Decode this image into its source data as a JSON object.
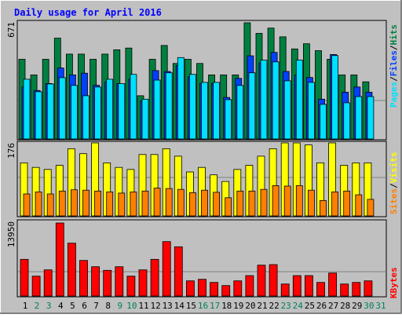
{
  "title": "Daily usage for April 2016",
  "colors": {
    "background": "#C0C0C0",
    "title": "#0000FF",
    "hits": "#008040",
    "files": "#0040FF",
    "pages": "#00E0FF",
    "visits": "#FFFF00",
    "sites": "#FF8000",
    "kbytes": "#FF0000",
    "weekend_day_label": "#00805C",
    "grid": "#808080"
  },
  "chart_data": [
    {
      "type": "bar",
      "panel": "hits-files-pages",
      "y_max_label": "671",
      "ylim": [
        0,
        671
      ],
      "legend": [
        "Pages",
        "Files",
        "Hits"
      ],
      "categories": [
        "1",
        "2",
        "3",
        "4",
        "5",
        "6",
        "7",
        "8",
        "9",
        "10",
        "11",
        "12",
        "13",
        "14",
        "15",
        "16",
        "17",
        "18",
        "19",
        "20",
        "21",
        "22",
        "23",
        "24",
        "25",
        "26",
        "27",
        "28",
        "29",
        "30",
        "31"
      ],
      "series": [
        {
          "name": "Hits",
          "values": [
            460,
            370,
            460,
            582,
            490,
            490,
            460,
            490,
            515,
            525,
            250,
            460,
            540,
            436,
            460,
            436,
            370,
            370,
            370,
            671,
            610,
            640,
            590,
            520,
            550,
            510,
            460,
            370,
            370,
            330,
            0
          ]
        },
        {
          "name": "Files",
          "values": [
            300,
            280,
            320,
            410,
            370,
            380,
            310,
            330,
            320,
            345,
            220,
            395,
            390,
            425,
            360,
            320,
            320,
            240,
            350,
            480,
            440,
            500,
            390,
            370,
            355,
            230,
            488,
            270,
            300,
            270,
            0
          ]
        },
        {
          "name": "Pages",
          "values": [
            345,
            273,
            318,
            354,
            309,
            250,
            300,
            345,
            320,
            373,
            230,
            340,
            382,
            470,
            373,
            327,
            327,
            227,
            309,
            382,
            455,
            445,
            336,
            455,
            327,
            200,
            482,
            209,
            245,
            245,
            0
          ]
        }
      ]
    },
    {
      "type": "bar",
      "panel": "visits-sites",
      "y_max_label": "176",
      "ylim": [
        0,
        176
      ],
      "legend": [
        "Sites",
        "Visits"
      ],
      "categories": [
        "1",
        "2",
        "3",
        "4",
        "5",
        "6",
        "7",
        "8",
        "9",
        "10",
        "11",
        "12",
        "13",
        "14",
        "15",
        "16",
        "17",
        "18",
        "19",
        "20",
        "21",
        "22",
        "23",
        "24",
        "25",
        "26",
        "27",
        "28",
        "29",
        "30",
        "31"
      ],
      "series": [
        {
          "name": "Visits",
          "values": [
            128,
            117,
            112,
            122,
            162,
            150,
            176,
            128,
            117,
            112,
            148,
            148,
            162,
            144,
            106,
            117,
            99,
            83,
            112,
            122,
            144,
            162,
            176,
            176,
            171,
            128,
            176,
            122,
            128,
            128,
            0
          ]
        },
        {
          "name": "Sites",
          "values": [
            53,
            58,
            53,
            60,
            63,
            62,
            60,
            58,
            55,
            58,
            60,
            67,
            66,
            64,
            56,
            62,
            57,
            44,
            60,
            60,
            64,
            73,
            72,
            73,
            62,
            37,
            58,
            60,
            51,
            40,
            0
          ]
        }
      ]
    },
    {
      "type": "bar",
      "panel": "kbytes",
      "y_max_label": "13950",
      "ylim": [
        0,
        13950
      ],
      "legend": [
        "KBytes"
      ],
      "categories": [
        "1",
        "2",
        "3",
        "4",
        "5",
        "6",
        "7",
        "8",
        "9",
        "10",
        "11",
        "12",
        "13",
        "14",
        "15",
        "16",
        "17",
        "18",
        "19",
        "20",
        "21",
        "22",
        "23",
        "24",
        "25",
        "26",
        "27",
        "28",
        "29",
        "30",
        "31"
      ],
      "series": [
        {
          "name": "KBytes",
          "values": [
            7000,
            3800,
            5000,
            13950,
            10100,
            6800,
            5600,
            4900,
            5600,
            3800,
            5000,
            7000,
            10400,
            9400,
            2900,
            3200,
            2600,
            2000,
            2900,
            3900,
            5900,
            6000,
            2300,
            3900,
            3900,
            2600,
            4400,
            2300,
            2600,
            2900,
            0
          ]
        }
      ]
    }
  ],
  "x_labels": [
    {
      "text": "1",
      "weekend": false
    },
    {
      "text": "2",
      "weekend": true
    },
    {
      "text": "3",
      "weekend": true
    },
    {
      "text": "4",
      "weekend": false
    },
    {
      "text": "5",
      "weekend": false
    },
    {
      "text": "6",
      "weekend": false
    },
    {
      "text": "7",
      "weekend": false
    },
    {
      "text": "8",
      "weekend": false
    },
    {
      "text": "9",
      "weekend": true
    },
    {
      "text": "10",
      "weekend": true
    },
    {
      "text": "11",
      "weekend": false
    },
    {
      "text": "12",
      "weekend": false
    },
    {
      "text": "13",
      "weekend": false
    },
    {
      "text": "14",
      "weekend": false
    },
    {
      "text": "15",
      "weekend": false
    },
    {
      "text": "16",
      "weekend": true
    },
    {
      "text": "17",
      "weekend": true
    },
    {
      "text": "18",
      "weekend": false
    },
    {
      "text": "19",
      "weekend": false
    },
    {
      "text": "20",
      "weekend": false
    },
    {
      "text": "21",
      "weekend": false
    },
    {
      "text": "22",
      "weekend": false
    },
    {
      "text": "23",
      "weekend": true
    },
    {
      "text": "24",
      "weekend": true
    },
    {
      "text": "25",
      "weekend": false
    },
    {
      "text": "26",
      "weekend": false
    },
    {
      "text": "27",
      "weekend": false
    },
    {
      "text": "28",
      "weekend": false
    },
    {
      "text": "29",
      "weekend": false
    },
    {
      "text": "30",
      "weekend": true
    },
    {
      "text": "31",
      "weekend": true
    }
  ]
}
